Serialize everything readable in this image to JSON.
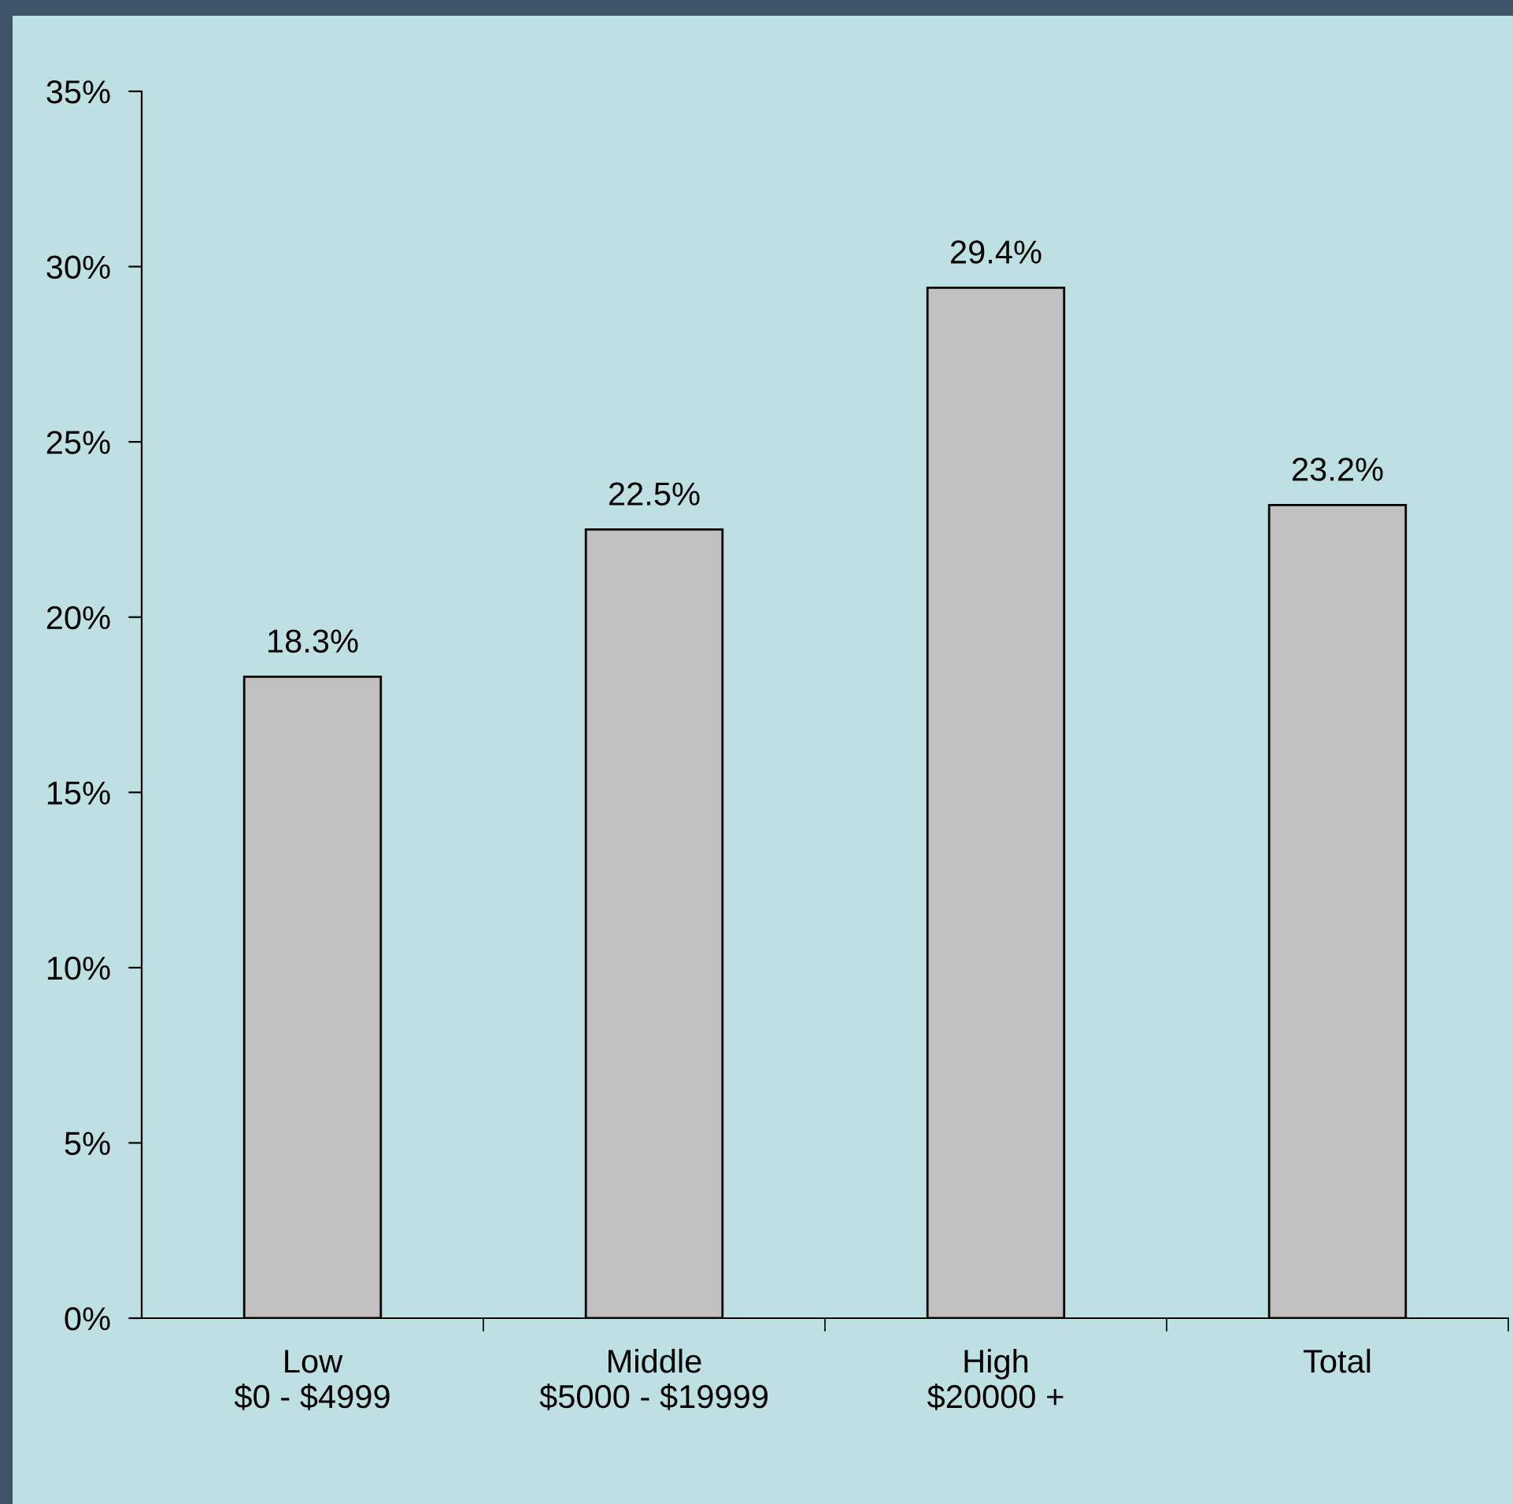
{
  "chart_data": {
    "type": "bar",
    "categories": [
      "Low\n$0 - $4999",
      "Middle\n$5000 - $19999",
      "High\n$20000 +",
      "Total"
    ],
    "values": [
      18.3,
      22.5,
      29.4,
      23.2
    ],
    "value_labels": [
      "18.3%",
      "22.5%",
      "29.4%",
      "23.2%"
    ],
    "color": "#c0c0c0",
    "ylim": [
      0,
      35
    ],
    "yticks": [
      {
        "value": 0,
        "label": "0%"
      },
      {
        "value": 5,
        "label": "5%"
      },
      {
        "value": 10,
        "label": "10%"
      },
      {
        "value": 15,
        "label": "15%"
      },
      {
        "value": 20,
        "label": "20%"
      },
      {
        "value": 25,
        "label": "25%"
      },
      {
        "value": 30,
        "label": "30%"
      },
      {
        "value": 35,
        "label": "35%"
      }
    ],
    "grid": false,
    "legend": false
  }
}
